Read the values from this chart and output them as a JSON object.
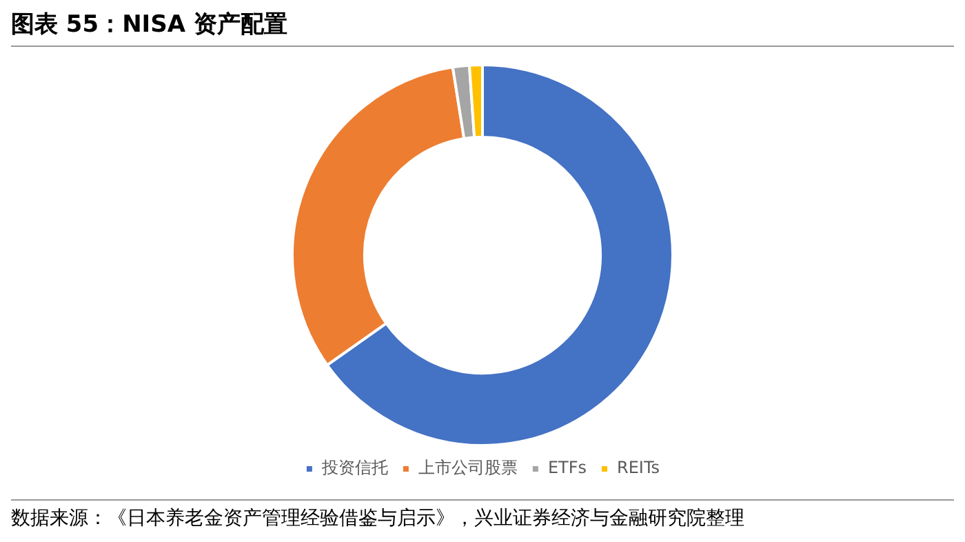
{
  "chart_data": {
    "type": "donut",
    "title": "图表 55：NISA 资产配置",
    "categories": [
      "投资信托",
      "上市公司股票",
      "ETFs",
      "REITs"
    ],
    "values": [
      65.2,
      32.3,
      1.4,
      1.1
    ],
    "colors": [
      "#4472c4",
      "#ed7d31",
      "#a5a5a5",
      "#ffc000"
    ],
    "legend": "bottom",
    "annotations": [
      "数据来源：《日本养老金资产管理经验借鉴与启示》，兴业证券经济与金融研究院整理"
    ]
  }
}
